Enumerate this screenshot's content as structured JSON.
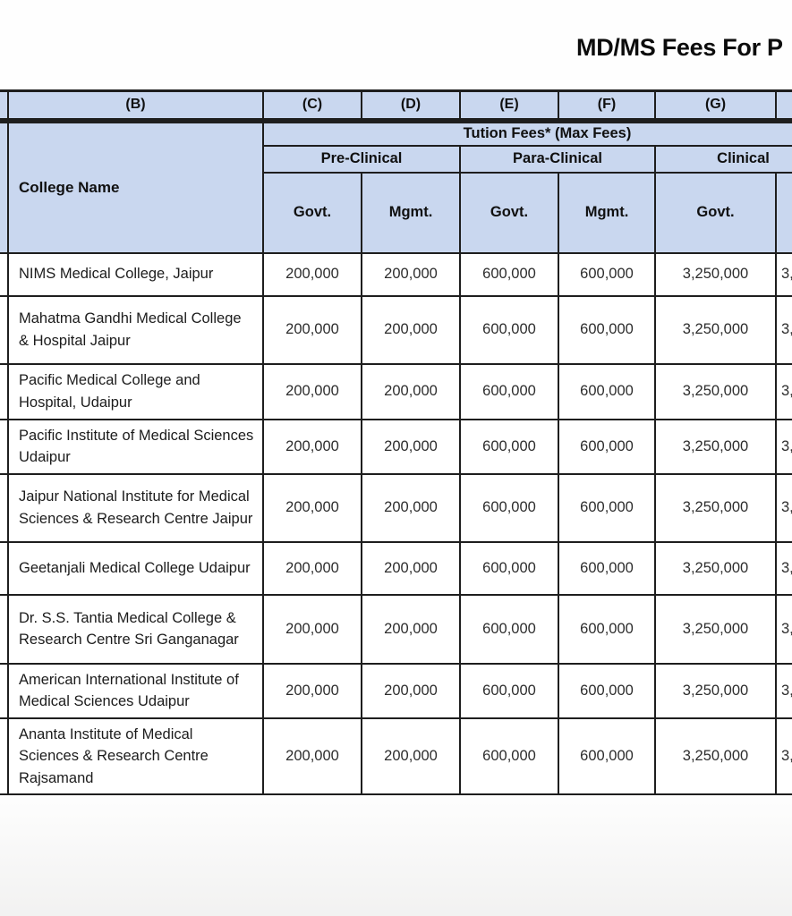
{
  "page": {
    "title": "MD/MS Fees For P"
  },
  "colors": {
    "header_bg": "#c9d7ef",
    "border": "#1e1e1e",
    "row_bg": "#ffffff"
  },
  "table": {
    "column_letters": {
      "a": "",
      "b": "(B)",
      "c": "(C)",
      "d": "(D)",
      "e": "(E)",
      "f": "(F)",
      "g": "(G)",
      "h": ""
    },
    "college_name_header": "College Name",
    "fees_group_header": "Tution Fees* (Max Fees)",
    "subgroup_headers": {
      "pre_clinical": "Pre-Clinical",
      "para_clinical": "Para-Clinical",
      "clinical": "Clinical"
    },
    "type_headers": {
      "c": "Govt.",
      "d": "Mgmt.",
      "e": "Govt.",
      "f": "Mgmt.",
      "g": "Govt.",
      "h": ""
    },
    "rows": [
      {
        "college": "NIMS Medical College, Jaipur",
        "values": [
          "200,000",
          "200,000",
          "600,000",
          "600,000",
          "3,250,000",
          "3,"
        ]
      },
      {
        "college": "Mahatma Gandhi Medical College & Hospital Jaipur",
        "values": [
          "200,000",
          "200,000",
          "600,000",
          "600,000",
          "3,250,000",
          "3,"
        ]
      },
      {
        "college": "Pacific Medical College and Hospital, Udaipur",
        "values": [
          "200,000",
          "200,000",
          "600,000",
          "600,000",
          "3,250,000",
          "3,"
        ]
      },
      {
        "college": "Pacific Institute of Medical Sciences Udaipur",
        "values": [
          "200,000",
          "200,000",
          "600,000",
          "600,000",
          "3,250,000",
          "3,"
        ]
      },
      {
        "college": "Jaipur National Institute for Medical Sciences & Research Centre Jaipur",
        "values": [
          "200,000",
          "200,000",
          "600,000",
          "600,000",
          "3,250,000",
          "3,"
        ]
      },
      {
        "college": "Geetanjali Medical College Udaipur",
        "values": [
          "200,000",
          "200,000",
          "600,000",
          "600,000",
          "3,250,000",
          "3,"
        ]
      },
      {
        "college": "Dr. S.S. Tantia Medical College & Research Centre Sri Ganganagar",
        "values": [
          "200,000",
          "200,000",
          "600,000",
          "600,000",
          "3,250,000",
          "3,"
        ]
      },
      {
        "college": "American International Institute of Medical Sciences Udaipur",
        "values": [
          "200,000",
          "200,000",
          "600,000",
          "600,000",
          "3,250,000",
          "3,"
        ]
      },
      {
        "college": "Ananta Institute of Medical Sciences & Research Centre Rajsamand",
        "values": [
          "200,000",
          "200,000",
          "600,000",
          "600,000",
          "3,250,000",
          "3,"
        ]
      }
    ]
  }
}
